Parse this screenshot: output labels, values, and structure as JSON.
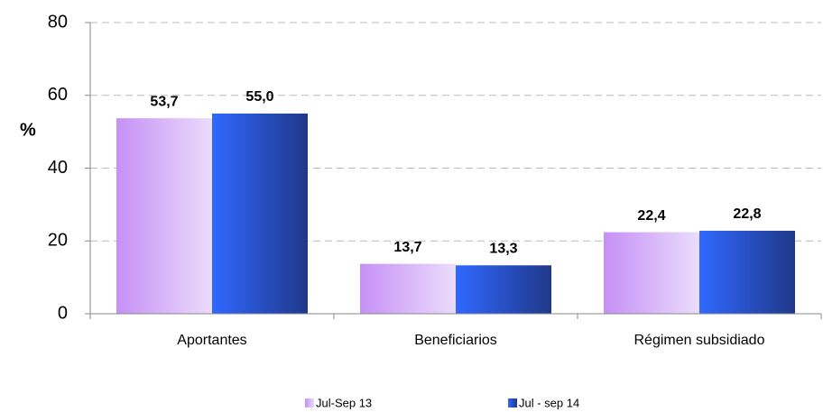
{
  "chart_data": {
    "type": "bar",
    "y_label": "%",
    "categories": [
      "Aportantes",
      "Beneficiarios",
      "Régimen subsidiado"
    ],
    "series": [
      {
        "name": "Jul-Sep 13",
        "color": "#c690f6",
        "gradient_end": "#ebdcfc",
        "values": [
          53.7,
          13.7,
          22.4
        ],
        "value_labels": [
          "53,7",
          "13,7",
          "22,4"
        ]
      },
      {
        "name": "Jul - sep 14",
        "color": "#3068ff",
        "gradient_end": "#1f388a",
        "values": [
          55.0,
          13.3,
          22.8
        ],
        "value_labels": [
          "55,0",
          "13,3",
          "22,8"
        ]
      }
    ],
    "ylim": [
      0,
      80
    ],
    "yticks": [
      0,
      20,
      40,
      60,
      80
    ],
    "grid": true
  }
}
